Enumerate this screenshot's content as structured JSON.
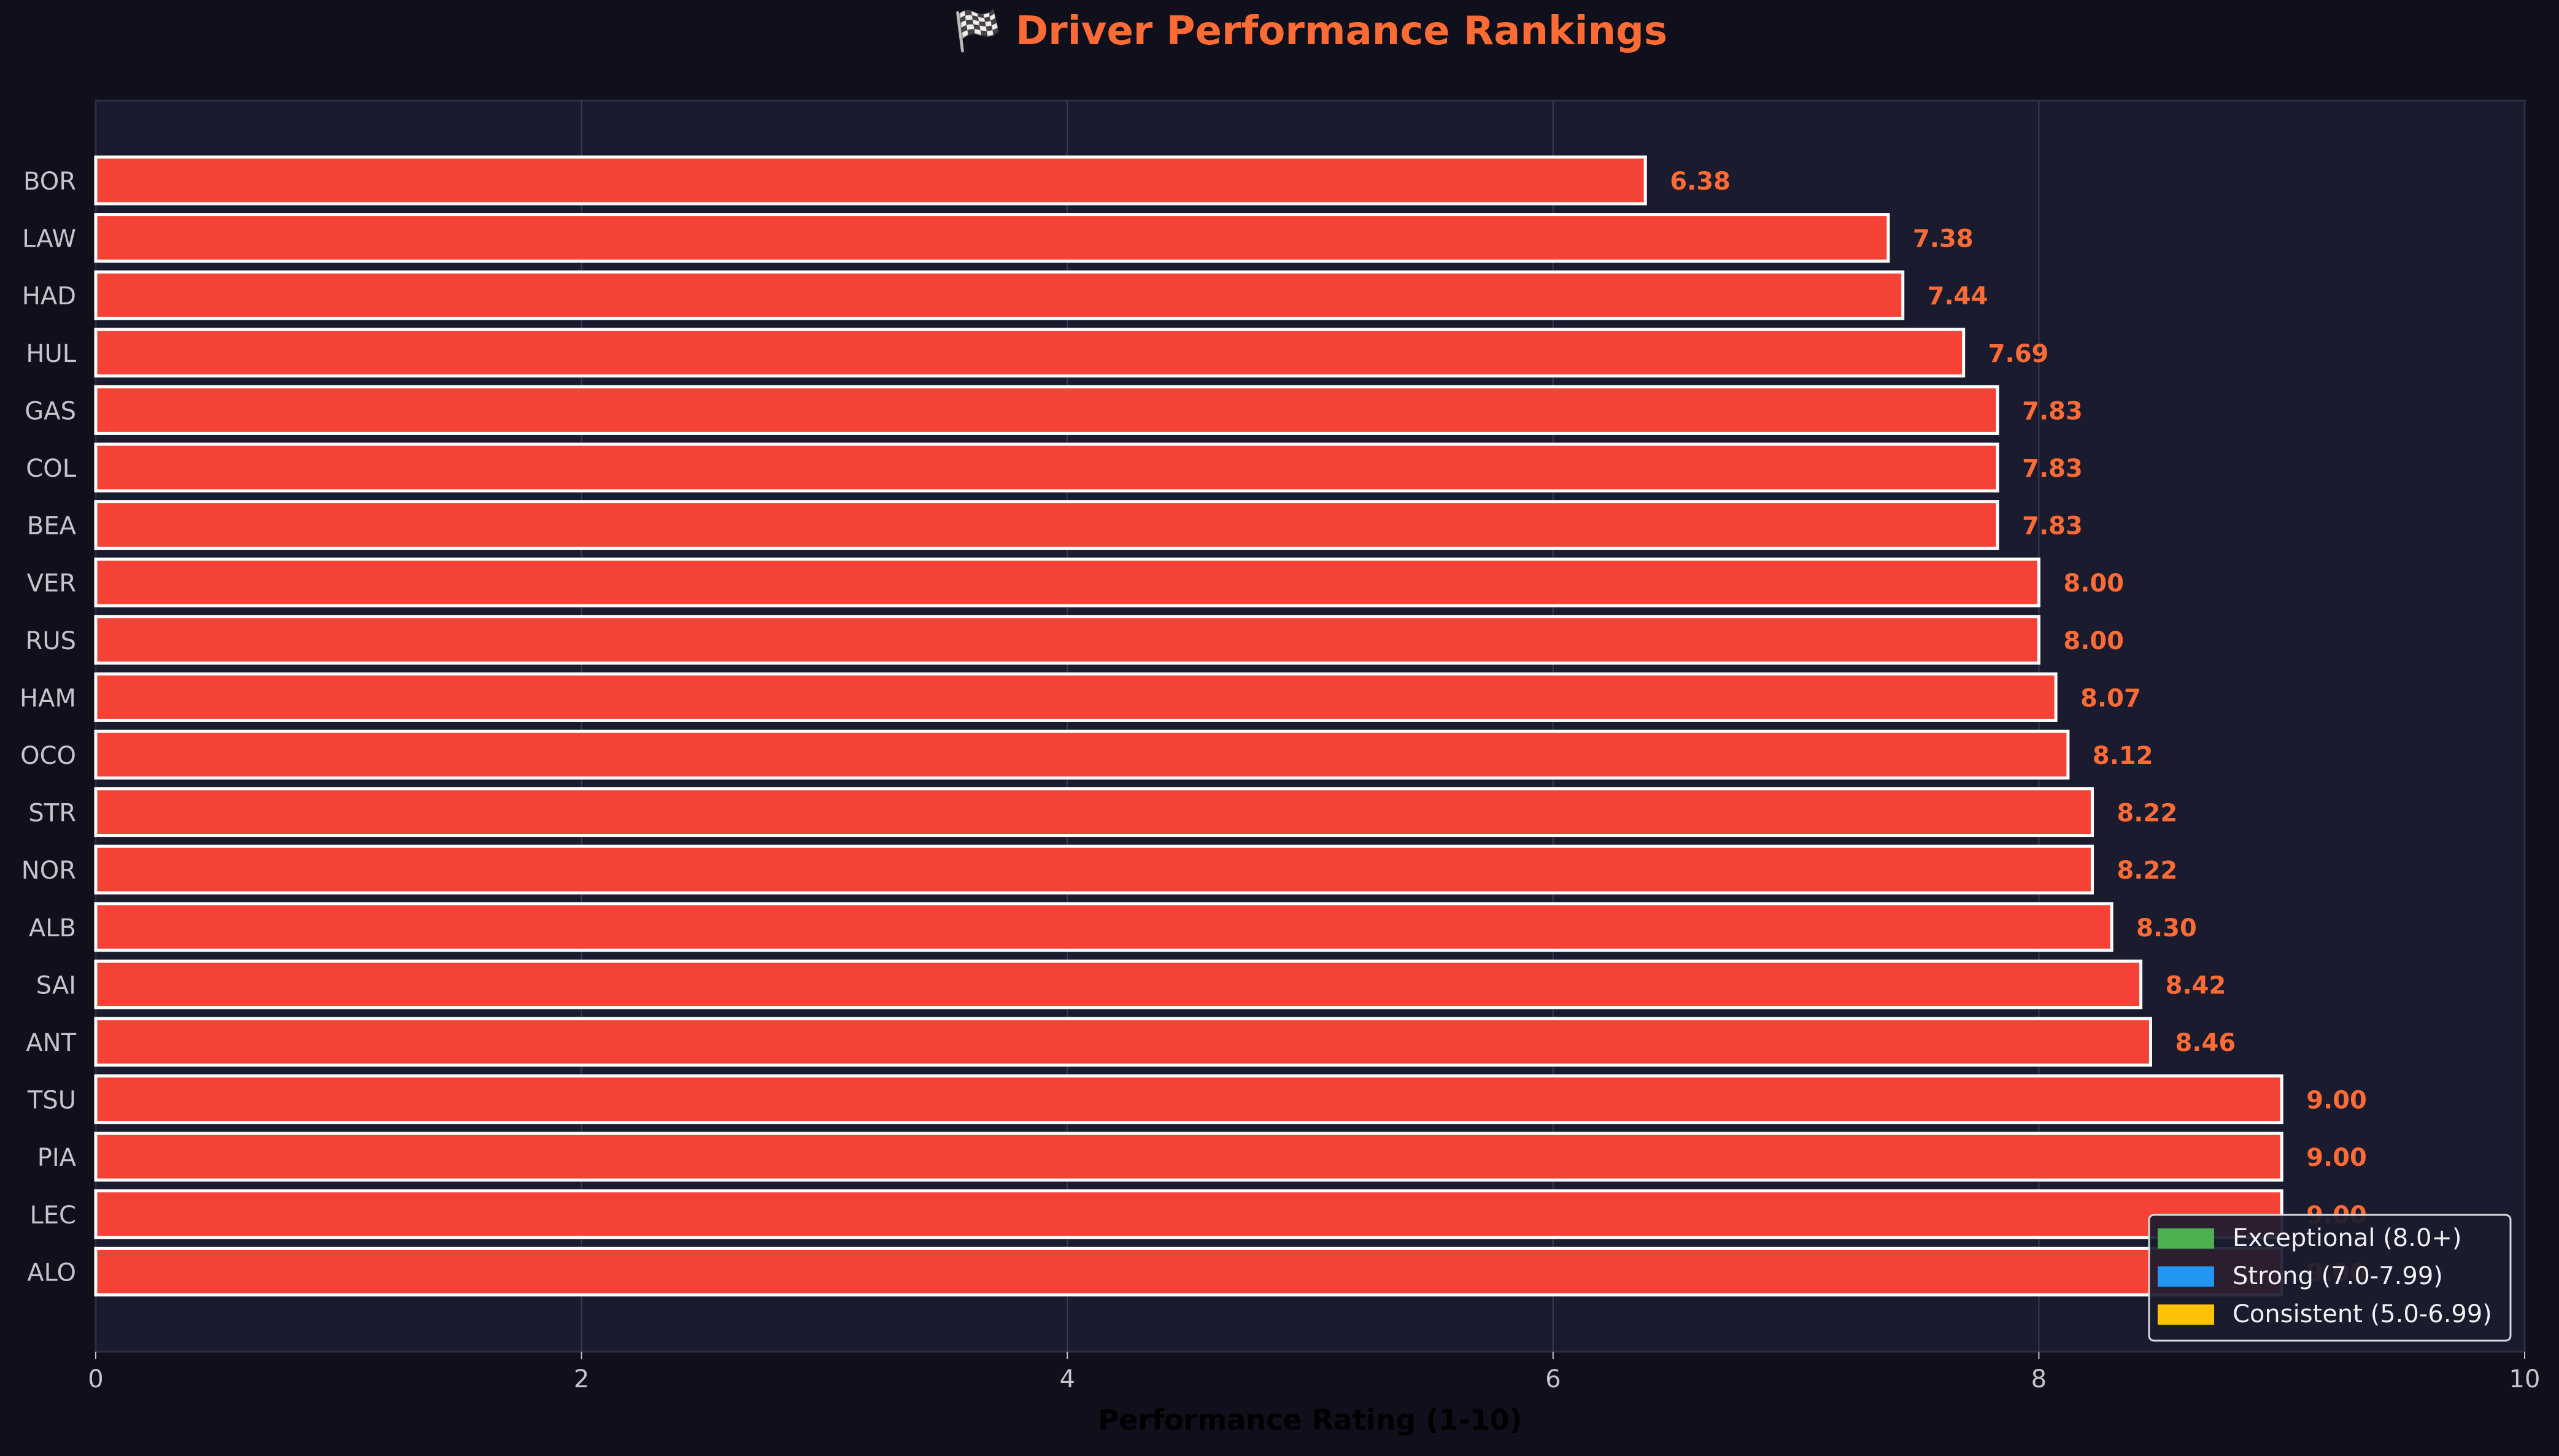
{
  "chart_data": {
    "type": "bar",
    "orientation": "horizontal",
    "title": "🏁 Driver Performance Rankings",
    "xlabel": "Performance Rating (1-10)",
    "ylabel": "",
    "xlim": [
      0,
      10
    ],
    "xticks": [
      0,
      2,
      4,
      6,
      8,
      10
    ],
    "grid": "x",
    "categories": [
      "BOR",
      "LAW",
      "HAD",
      "HUL",
      "GAS",
      "COL",
      "BEA",
      "VER",
      "RUS",
      "HAM",
      "OCO",
      "STR",
      "NOR",
      "ALB",
      "SAI",
      "ANT",
      "TSU",
      "PIA",
      "LEC",
      "ALO"
    ],
    "values": [
      6.38,
      7.38,
      7.44,
      7.69,
      7.83,
      7.83,
      7.83,
      8.0,
      8.0,
      8.07,
      8.12,
      8.22,
      8.22,
      8.3,
      8.42,
      8.46,
      9.0,
      9.0,
      9.0,
      9.0
    ],
    "value_labels": [
      "6.38",
      "7.38",
      "7.44",
      "7.69",
      "7.83",
      "7.83",
      "7.83",
      "8.00",
      "8.00",
      "8.07",
      "8.12",
      "8.22",
      "8.22",
      "8.30",
      "8.42",
      "8.46",
      "9.00",
      "9.00",
      "9.00",
      "9.00"
    ],
    "bar_color": "#f44336",
    "bar_edge_color": "#ffffff",
    "value_label_color": "#ff6b35",
    "title_color": "#ff6b35",
    "legend": {
      "placement": "bottom-right",
      "entries": [
        {
          "label": "Exceptional (8.0+)",
          "color": "#4caf50"
        },
        {
          "label": "Strong (7.0-7.99)",
          "color": "#2196f3"
        },
        {
          "label": "Consistent (5.0-6.99)",
          "color": "#ffc107"
        }
      ]
    }
  }
}
